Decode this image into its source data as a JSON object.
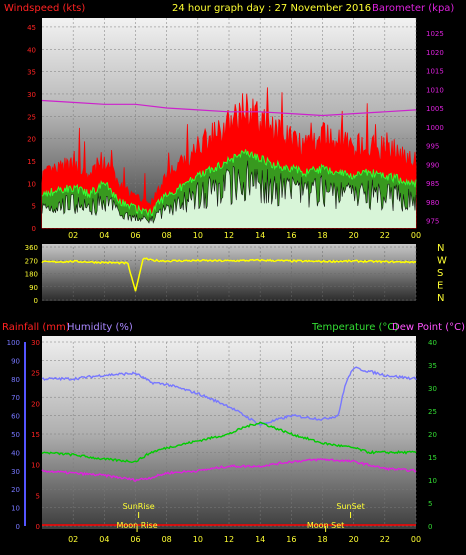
{
  "header": {
    "title": "24 hour graph day : 27 November 2016",
    "wind_label": "Windspeed (kts)",
    "baro_label": "Barometer (kpa)"
  },
  "colors": {
    "wind": "#ff0000",
    "wind_mid": "#00cc00",
    "wind_low": "#d8f5d8",
    "baro": "#cc22cc",
    "direction": "#ffff00",
    "temperature": "#00cc00",
    "dewpoint": "#dd22dd",
    "humidity": "#7777ff",
    "rain_axis": "#ff2222",
    "label_yellow": "#ffff33",
    "title_yellow": "#ffff33",
    "axis_label_green": "#33dd33",
    "humidity_label": "#aa88ff",
    "dew_label": "#ff55ff"
  },
  "chart_data": [
    {
      "type": "line",
      "title": "24 hour graph day : 27 November 2016",
      "x_ticks": [
        "02",
        "04",
        "06",
        "08",
        "10",
        "12",
        "14",
        "16",
        "18",
        "20",
        "22",
        "00"
      ],
      "x_hours": [
        0,
        24
      ],
      "y_left": {
        "label": "Windspeed (kts)",
        "ticks": [
          0,
          5,
          10,
          15,
          20,
          25,
          30,
          35,
          40,
          45
        ],
        "range": [
          0,
          47
        ]
      },
      "y_right": {
        "label": "Barometer (kpa)",
        "ticks": [
          975,
          980,
          985,
          990,
          995,
          1000,
          1005,
          1010,
          1015,
          1020,
          1025
        ],
        "range": [
          973,
          1029
        ]
      },
      "series": [
        {
          "name": "Windspeed (kts)",
          "axis": "left",
          "hours": [
            0,
            1,
            2,
            3,
            4,
            5,
            6,
            7,
            8,
            9,
            10,
            11,
            12,
            13,
            14,
            15,
            16,
            17,
            18,
            19,
            20,
            21,
            22,
            23,
            24
          ],
          "values": [
            8,
            9,
            10,
            8,
            11,
            6,
            4,
            3,
            8,
            10,
            13,
            15,
            17,
            20,
            18,
            16,
            15,
            14,
            15,
            14,
            13,
            14,
            13,
            12,
            11
          ]
        },
        {
          "name": "Barometer (kpa)",
          "axis": "right",
          "hours": [
            0,
            2,
            4,
            6,
            8,
            10,
            12,
            14,
            16,
            18,
            20,
            22,
            24
          ],
          "values": [
            1007,
            1006.5,
            1006,
            1006,
            1005,
            1004.5,
            1004,
            1004,
            1003.5,
            1003,
            1003.5,
            1004,
            1004.5
          ]
        }
      ]
    },
    {
      "type": "line",
      "y_right_labels": [
        "N",
        "W",
        "S",
        "E",
        "N"
      ],
      "y_left": {
        "ticks": [
          0,
          90,
          180,
          270,
          360
        ],
        "range": [
          0,
          360
        ]
      },
      "series": [
        {
          "name": "Wind direction",
          "hours": [
            0,
            2,
            4,
            5.5,
            6,
            6.5,
            7,
            8,
            10,
            12,
            14,
            16,
            18,
            20,
            22,
            24
          ],
          "values": [
            258,
            262,
            255,
            250,
            60,
            285,
            270,
            265,
            268,
            266,
            270,
            265,
            262,
            264,
            260,
            258
          ]
        }
      ]
    },
    {
      "type": "line",
      "labels": {
        "rain": "Rainfall (mm)",
        "humidity": "Humidity (%)",
        "temperature": "Temperature (°C)",
        "dewpoint": "Dew Point (°C)"
      },
      "y_rain": {
        "ticks": [
          0,
          10,
          20,
          30,
          40,
          50,
          60,
          70,
          80,
          90,
          100
        ],
        "range": [
          0,
          100
        ]
      },
      "y_hum": {
        "ticks": [
          0,
          5,
          10,
          15,
          20,
          25,
          30
        ],
        "range": [
          0,
          30
        ]
      },
      "y_temp": {
        "ticks": [
          0,
          5,
          10,
          15,
          20,
          25,
          30,
          35,
          40
        ],
        "range": [
          0,
          40
        ]
      },
      "series": [
        {
          "name": "Humidity (%)",
          "axis": "rain",
          "hours": [
            0,
            2,
            4,
            6,
            7,
            8,
            10,
            12,
            14,
            16,
            18,
            19,
            19.5,
            20,
            20.5,
            22,
            24
          ],
          "values": [
            80,
            80,
            82,
            83,
            78,
            77,
            72,
            65,
            55,
            60,
            58,
            60,
            78,
            86,
            85,
            82,
            80
          ]
        },
        {
          "name": "Temperature (°C)",
          "axis": "temp",
          "hours": [
            0,
            2,
            4,
            6,
            7,
            8,
            10,
            12,
            13,
            14,
            16,
            18,
            20,
            21,
            22,
            24
          ],
          "values": [
            16,
            15.5,
            14.5,
            14,
            16,
            17,
            18.5,
            20,
            21.5,
            22.5,
            20,
            18,
            17,
            16,
            16,
            16
          ]
        },
        {
          "name": "Dew Point (°C)",
          "axis": "temp",
          "hours": [
            0,
            2,
            4,
            6,
            7,
            8,
            10,
            12,
            14,
            16,
            18,
            20,
            22,
            24
          ],
          "values": [
            12,
            11.5,
            11,
            10,
            10.5,
            11.5,
            12,
            13,
            13,
            14,
            14.5,
            14,
            12.5,
            12
          ]
        },
        {
          "name": "Rainfall (mm)",
          "axis": "rain",
          "hours": [
            0,
            24
          ],
          "values": [
            0,
            0
          ]
        }
      ],
      "annotations": [
        {
          "text": "SunRise",
          "hour": 6.2
        },
        {
          "text": "SunSet",
          "hour": 19.8
        },
        {
          "text": "Moon Rise",
          "hour": 6.1
        },
        {
          "text": "Moon Set",
          "hour": 18.2
        }
      ]
    }
  ]
}
